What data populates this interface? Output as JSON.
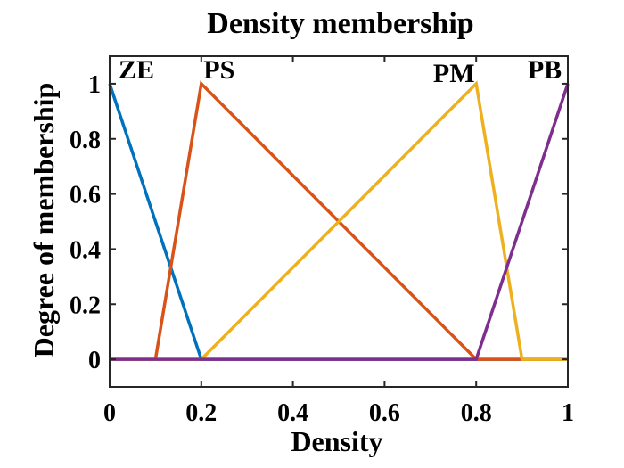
{
  "chart_data": {
    "type": "line",
    "title": "Density membership",
    "xlabel": "Density",
    "ylabel": "Degree of membership",
    "xlim": [
      0,
      1
    ],
    "ylim": [
      -0.1,
      1.1
    ],
    "xticks": [
      0,
      0.2,
      0.4,
      0.6,
      0.8,
      1
    ],
    "yticks": [
      0,
      0.2,
      0.4,
      0.6,
      0.8,
      1
    ],
    "xtick_labels": [
      "0",
      "0.2",
      "0.4",
      "0.6",
      "0.8",
      "1"
    ],
    "ytick_labels": [
      "0",
      "0.2",
      "0.4",
      "0.6",
      "0.8",
      "1"
    ],
    "grid": false,
    "series": [
      {
        "name": "ZE",
        "color": "#0072BD",
        "x": [
          0,
          0.2,
          1
        ],
        "y": [
          1,
          0,
          0
        ]
      },
      {
        "name": "PS",
        "color": "#D95319",
        "x": [
          0,
          0.1,
          0.2,
          0.8,
          1
        ],
        "y": [
          0,
          0,
          1,
          0,
          0
        ]
      },
      {
        "name": "PM",
        "color": "#EDB120",
        "x": [
          0,
          0.2,
          0.8,
          0.9,
          1
        ],
        "y": [
          0,
          0,
          1,
          0,
          0
        ]
      },
      {
        "name": "PB",
        "color": "#7E2F8E",
        "x": [
          0,
          0.8,
          1
        ],
        "y": [
          0,
          0,
          1
        ]
      }
    ],
    "annotations": [
      {
        "text": "ZE",
        "x": 0.0,
        "y": 1.0
      },
      {
        "text": "PS",
        "x": 0.2,
        "y": 1.0
      },
      {
        "text": "PM",
        "x": 0.8,
        "y": 1.0
      },
      {
        "text": "PB",
        "x": 1.0,
        "y": 1.0
      }
    ]
  }
}
